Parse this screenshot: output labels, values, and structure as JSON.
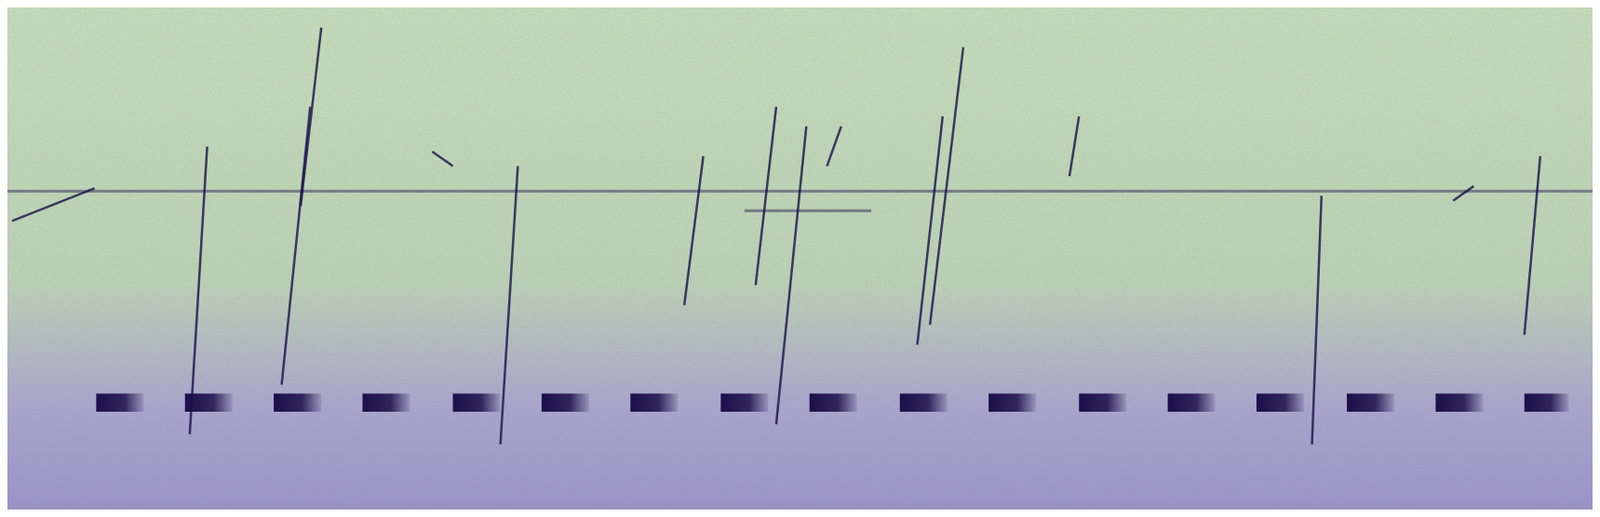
{
  "chart_data": {
    "type": "spectrogram",
    "tick_labels": false,
    "xlim": [
      0,
      100
    ],
    "ylim": [
      0,
      100
    ],
    "color": "#1c0f4a",
    "pulses": {
      "start": [
        5.6,
        11.2,
        16.8,
        22.4,
        28.1,
        33.7,
        39.3,
        45.0,
        50.6,
        56.3,
        61.9,
        67.6,
        73.2,
        78.8,
        84.5,
        90.1,
        95.7
      ],
      "end": [
        8.6,
        14.2,
        19.8,
        25.4,
        31.1,
        36.7,
        42.3,
        48.0,
        53.6,
        59.3,
        64.9,
        70.6,
        76.2,
        81.8,
        87.5,
        93.1,
        98.5
      ],
      "frequency": 21.3
    },
    "chirps": [
      {
        "x": [
          11.5,
          12.6
        ],
        "y": [
          15.0,
          72.3
        ]
      },
      {
        "x": [
          17.3,
          19.1
        ],
        "y": [
          24.9,
          80.2
        ]
      },
      {
        "x": [
          18.5,
          19.8
        ],
        "y": [
          60.5,
          96.0
        ]
      },
      {
        "x": [
          26.8,
          28.1
        ],
        "y": [
          71.3,
          68.4
        ]
      },
      {
        "x": [
          31.1,
          32.2
        ],
        "y": [
          13.0,
          68.4
        ]
      },
      {
        "x": [
          42.7,
          43.9
        ],
        "y": [
          40.7,
          70.4
        ]
      },
      {
        "x": [
          47.2,
          48.5
        ],
        "y": [
          44.7,
          80.2
        ]
      },
      {
        "x": [
          48.5,
          50.4
        ],
        "y": [
          17.0,
          76.3
        ]
      },
      {
        "x": [
          51.7,
          52.6
        ],
        "y": [
          68.4,
          76.3
        ]
      },
      {
        "x": [
          57.4,
          59.0
        ],
        "y": [
          32.8,
          78.3
        ]
      },
      {
        "x": [
          58.2,
          60.3
        ],
        "y": [
          36.8,
          92.1
        ]
      },
      {
        "x": [
          67.0,
          67.6
        ],
        "y": [
          66.4,
          78.3
        ]
      },
      {
        "x": [
          82.3,
          82.9
        ],
        "y": [
          13.0,
          62.5
        ]
      },
      {
        "x": [
          91.2,
          92.5
        ],
        "y": [
          61.5,
          64.4
        ]
      },
      {
        "x": [
          95.7,
          96.7
        ],
        "y": [
          34.8,
          70.4
        ]
      },
      {
        "x": [
          0.3,
          5.5
        ],
        "y": [
          57.5,
          64.0
        ]
      }
    ],
    "bands": [
      {
        "x": [
          0,
          100
        ],
        "y": [
          63.4,
          63.4
        ]
      },
      {
        "x": [
          46.5,
          54.5
        ],
        "y": [
          59.5,
          59.5
        ]
      }
    ]
  }
}
